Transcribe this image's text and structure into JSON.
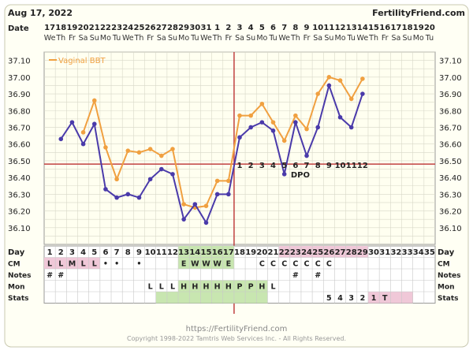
{
  "header": {
    "date": "Aug 17, 2022",
    "brand": "FertilityFriend.com"
  },
  "labels": {
    "date": "Date",
    "day": "Day",
    "cm": "CM",
    "notes": "Notes",
    "mon": "Mon",
    "stats": "Stats",
    "dpo": "DPO"
  },
  "footer": {
    "url": "https://FertilityFriend.com",
    "copyright": "Copyright 1998-2022 Tamtris Web Services Inc. - All Rights Reserved."
  },
  "colors": {
    "bbt": "#f0a040",
    "bbt_alt": "#4a3aaa",
    "coverline": "#c04040",
    "fertile": "#c8e6b0",
    "cm_pink": "#f0c8d8"
  },
  "chart_data": {
    "type": "line",
    "legend": "Vaginal BBT",
    "legend_position": "top-left",
    "ylim": [
      36.0,
      37.15
    ],
    "yticks": [
      "37.10",
      "37.00",
      "36.90",
      "36.80",
      "36.70",
      "36.60",
      "36.50",
      "36.40",
      "36.30",
      "36.20",
      "36.10"
    ],
    "dates": [
      "17",
      "18",
      "19",
      "20",
      "21",
      "22",
      "23",
      "24",
      "25",
      "26",
      "27",
      "28",
      "29",
      "30",
      "31",
      "1",
      "2",
      "3",
      "4",
      "5",
      "6",
      "7",
      "8",
      "9",
      "10",
      "11",
      "12",
      "13",
      "14",
      "15",
      "16",
      "17",
      "18",
      "19",
      "20"
    ],
    "weekdays": [
      "We",
      "Th",
      "Fr",
      "Sa",
      "Su",
      "Mo",
      "Tu",
      "We",
      "Th",
      "Fr",
      "Sa",
      "Su",
      "Mo",
      "Tu",
      "We",
      "Th",
      "Fr",
      "Sa",
      "Su",
      "Mo",
      "Tu",
      "We",
      "Th",
      "Fr",
      "Sa",
      "Su",
      "Mo",
      "Tu",
      "We",
      "Th",
      "Fr",
      "Sa",
      "Su",
      "Mo",
      "Tu"
    ],
    "days": [
      1,
      2,
      3,
      4,
      5,
      6,
      7,
      8,
      9,
      10,
      11,
      12,
      13,
      14,
      15,
      16,
      17,
      18,
      19,
      20,
      21,
      22,
      23,
      24,
      25,
      26,
      27,
      28,
      29,
      30,
      31,
      32,
      33,
      34,
      35
    ],
    "series": [
      {
        "name": "Vaginal BBT",
        "values": [
          null,
          null,
          null,
          36.67,
          36.86,
          36.58,
          36.39,
          36.56,
          36.55,
          36.57,
          36.53,
          36.57,
          36.24,
          36.22,
          36.23,
          36.38,
          36.38,
          36.77,
          36.77,
          36.84,
          36.73,
          36.62,
          36.77,
          36.69,
          36.9,
          37.0,
          36.98,
          36.87,
          36.99,
          null,
          null,
          null,
          null,
          null,
          null
        ]
      },
      {
        "values": [
          null,
          36.63,
          36.73,
          36.6,
          36.72,
          36.33,
          36.28,
          36.3,
          36.28,
          36.39,
          36.45,
          36.42,
          36.15,
          36.24,
          36.13,
          36.3,
          36.3,
          36.64,
          36.7,
          36.73,
          36.68,
          36.42,
          36.73,
          36.53,
          36.7,
          36.95,
          36.76,
          36.7,
          36.9,
          null,
          null,
          null,
          null,
          null,
          null
        ]
      }
    ],
    "coverline": 36.48,
    "ovulation_day": 17,
    "dpo_start_day": 18,
    "dpo_labels": [
      "1",
      "2",
      "3",
      "4",
      "5",
      "6",
      "7",
      "8",
      "9",
      "10",
      "11",
      "12"
    ],
    "cm": [
      "L",
      "L",
      "M",
      "L",
      "L",
      "•",
      "•",
      "",
      "•",
      "",
      "",
      "",
      "E",
      "W",
      "W",
      "W",
      "E",
      "",
      "",
      "C",
      "C",
      "C",
      "C",
      "C",
      "C",
      "C",
      "",
      "",
      "",
      "",
      "",
      "",
      "",
      "",
      ""
    ],
    "notes": [
      "#",
      "#",
      "",
      "",
      "",
      "",
      "",
      "",
      "",
      "",
      "",
      "",
      "",
      "",
      "",
      "",
      "",
      "",
      "",
      "",
      "",
      "",
      "#",
      "",
      "#",
      "",
      "",
      "",
      "",
      "",
      "",
      "",
      "",
      "",
      ""
    ],
    "mon": [
      "",
      "",
      "",
      "",
      "",
      "",
      "",
      "",
      "",
      "L",
      "L",
      "L",
      "H",
      "H",
      "H",
      "H",
      "H",
      "P",
      "P",
      "H",
      "L",
      "",
      "",
      "",
      "",
      "",
      "",
      "",
      "",
      "",
      "",
      "",
      "",
      "",
      ""
    ],
    "stats": [
      "",
      "",
      "",
      "",
      "",
      "",
      "",
      "",
      "",
      "",
      "",
      "",
      "",
      "",
      "",
      "",
      "",
      "",
      "",
      "",
      "",
      "",
      "",
      "",
      "",
      "5",
      "4",
      "3",
      "2",
      "1",
      "T",
      "",
      "",
      "",
      ""
    ],
    "cm_green_days": [
      13,
      14,
      15,
      16,
      17
    ],
    "cm_pink_days": [
      1,
      2,
      3,
      4,
      5
    ],
    "stats_green_days": [
      11,
      12,
      13,
      14,
      15,
      16,
      17,
      18,
      19,
      20
    ],
    "stats_pink_days": [
      30,
      31,
      32,
      33
    ]
  }
}
